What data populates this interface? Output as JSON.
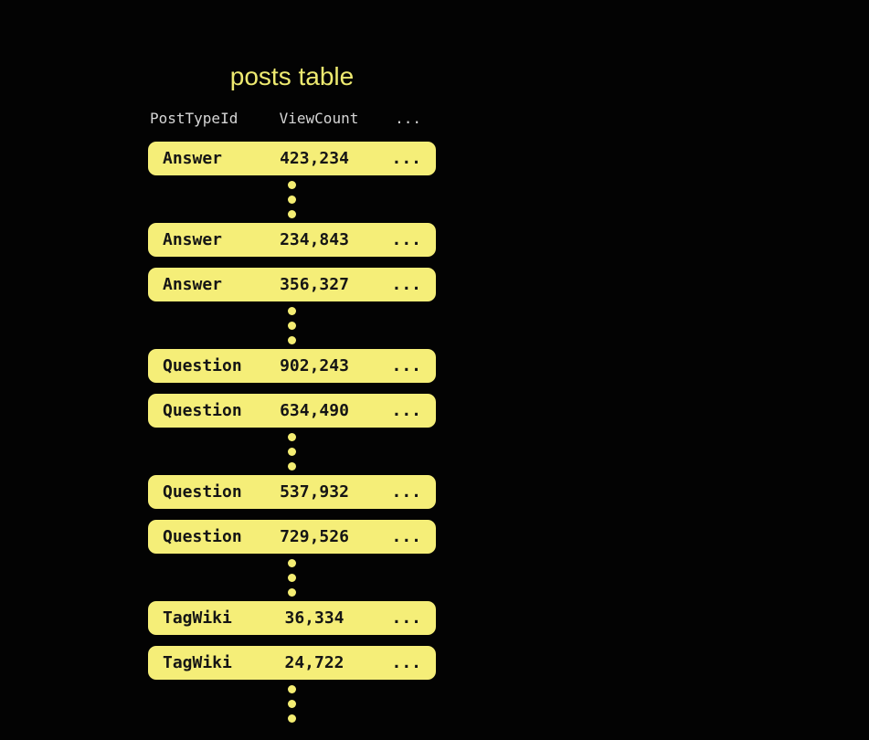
{
  "title": "posts table",
  "colors": {
    "background": "#030303",
    "row_fill": "#f5ee78",
    "row_text": "#151515",
    "title_text": "#eeea70",
    "header_text": "#d6d6d6",
    "dot_fill": "#f4ed72"
  },
  "table": {
    "columns": [
      "PostTypeId",
      "ViewCount",
      "..."
    ],
    "ellipsis": "...",
    "rows": [
      {
        "kind": "row",
        "post_type": "Answer",
        "view_count": "423,234"
      },
      {
        "kind": "dots"
      },
      {
        "kind": "row",
        "post_type": "Answer",
        "view_count": "234,843"
      },
      {
        "kind": "row",
        "post_type": "Answer",
        "view_count": "356,327"
      },
      {
        "kind": "dots"
      },
      {
        "kind": "row",
        "post_type": "Question",
        "view_count": "902,243"
      },
      {
        "kind": "row",
        "post_type": "Question",
        "view_count": "634,490"
      },
      {
        "kind": "dots"
      },
      {
        "kind": "row",
        "post_type": "Question",
        "view_count": "537,932"
      },
      {
        "kind": "row",
        "post_type": "Question",
        "view_count": "729,526"
      },
      {
        "kind": "dots"
      },
      {
        "kind": "row",
        "post_type": "TagWiki",
        "view_count": "36,334"
      },
      {
        "kind": "row",
        "post_type": "TagWiki",
        "view_count": "24,722"
      },
      {
        "kind": "dots"
      }
    ]
  }
}
